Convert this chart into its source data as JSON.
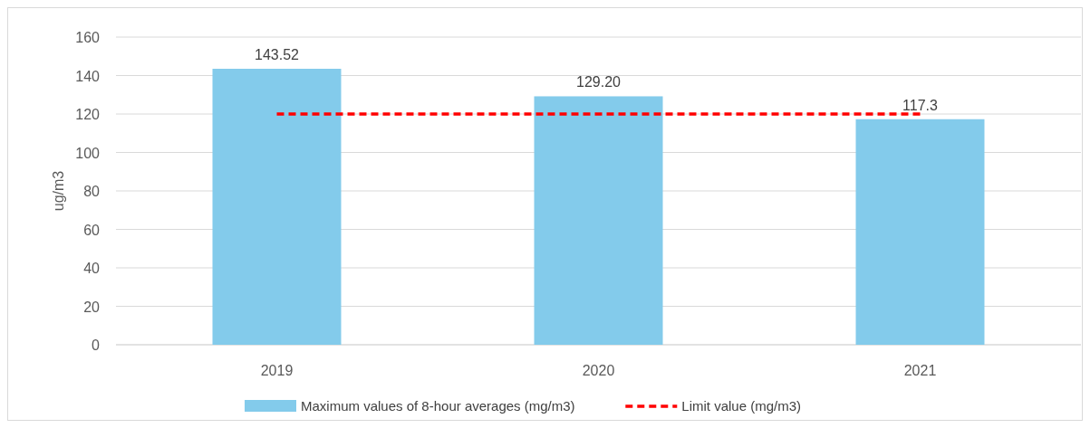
{
  "chart_data": {
    "type": "bar",
    "ylabel": "ug/m3",
    "categories": [
      "2019",
      "2020",
      "2021"
    ],
    "series": [
      {
        "name": "Maximum values of 8-hour averages (mg/m3)",
        "color": "#83cbeb",
        "values": [
          143.52,
          129.2,
          117.3
        ],
        "value_labels": [
          "143.52",
          "129.20",
          "117.3"
        ]
      },
      {
        "type": "line",
        "name": "Limit value (mg/m3)",
        "color": "#ff0000",
        "values": [
          120,
          120,
          120
        ],
        "line_style": "dashed",
        "marker": "none"
      }
    ],
    "ylim": [
      0,
      160
    ],
    "yticks": [
      0,
      20,
      40,
      60,
      80,
      100,
      120,
      140,
      160
    ],
    "grid": "y",
    "legend": "bottom"
  }
}
